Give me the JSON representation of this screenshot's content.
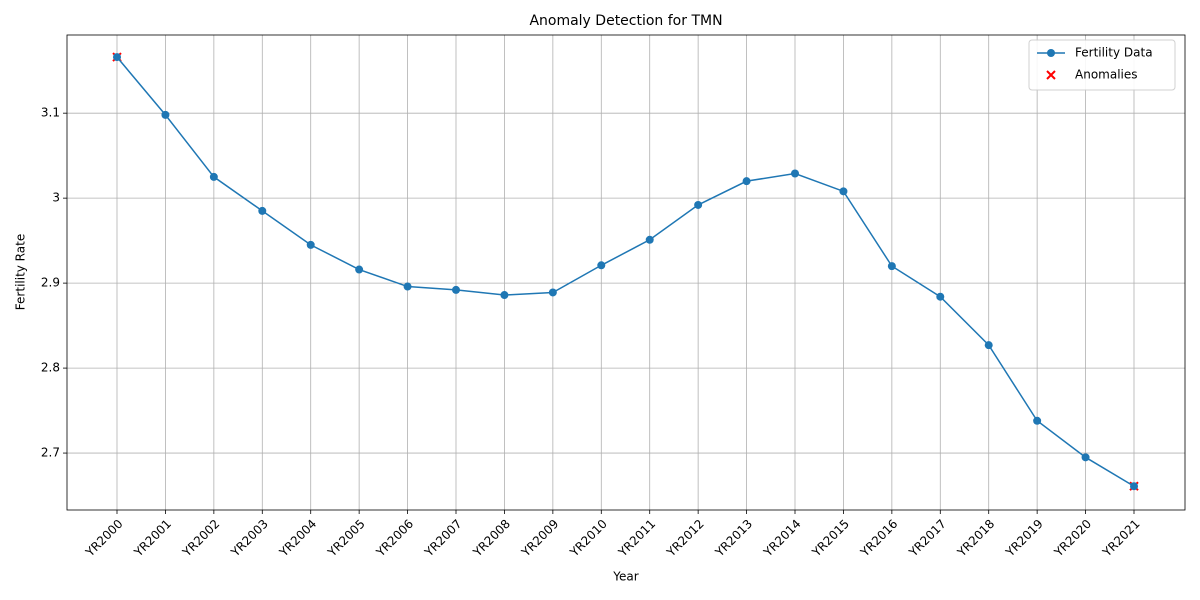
{
  "chart_data": {
    "type": "line",
    "title": "Anomaly Detection for TMN",
    "x_label": "Year",
    "y_label": "Fertility Rate",
    "categories": [
      "YR2000",
      "YR2001",
      "YR2002",
      "YR2003",
      "YR2004",
      "YR2005",
      "YR2006",
      "YR2007",
      "YR2008",
      "YR2009",
      "YR2010",
      "YR2011",
      "YR2012",
      "YR2013",
      "YR2014",
      "YR2015",
      "YR2016",
      "YR2017",
      "YR2018",
      "YR2019",
      "YR2020",
      "YR2021"
    ],
    "series": [
      {
        "name": "Fertility Data",
        "color": "#1f77b4",
        "marker": "o",
        "values": [
          3.166,
          3.098,
          3.025,
          2.985,
          2.945,
          2.916,
          2.896,
          2.892,
          2.886,
          2.889,
          2.921,
          2.951,
          2.992,
          3.02,
          3.029,
          3.008,
          2.92,
          2.884,
          2.827,
          2.738,
          2.695,
          2.661
        ]
      },
      {
        "name": "Anomalies",
        "color": "#ff0000",
        "marker": "x",
        "values": [
          3.166,
          null,
          null,
          null,
          null,
          null,
          null,
          null,
          null,
          null,
          null,
          null,
          null,
          null,
          null,
          null,
          null,
          null,
          null,
          null,
          null,
          2.661
        ]
      }
    ],
    "ylim": [
      2.633,
      3.192
    ],
    "yticks": [
      2.7,
      2.8,
      2.9,
      3.0,
      3.1
    ],
    "grid": true,
    "legend": "upper right"
  }
}
